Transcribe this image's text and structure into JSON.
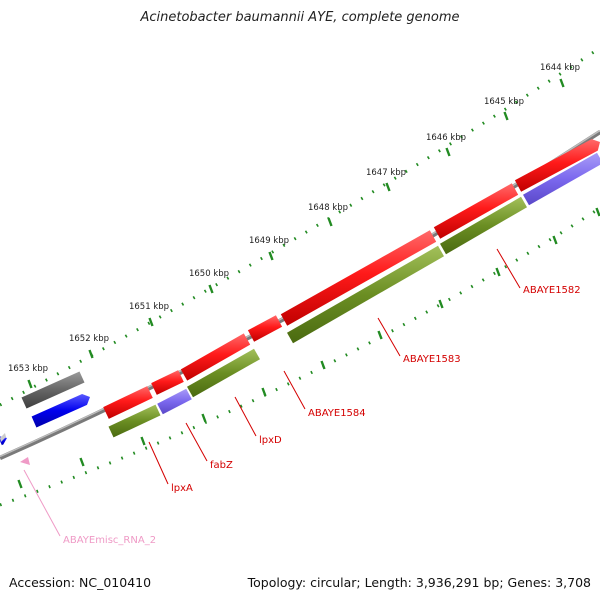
{
  "title": "Acinetobacter baumannii AYE, complete genome",
  "footer": {
    "accession": "Accession: NC_010410",
    "summary": "Topology: circular; Length: 3,936,291 bp; Genes: 3,708"
  },
  "ruler": {
    "labels": [
      "1644 kbp",
      "1645 kbp",
      "1646 kbp",
      "1647 kbp",
      "1648 kbp",
      "1649 kbp",
      "1650 kbp",
      "1651 kbp",
      "1652 kbp",
      "1653 kbp"
    ]
  },
  "genes": [
    {
      "name": "ABAYE1582",
      "color": "#d40000"
    },
    {
      "name": "ABAYE1583",
      "color": "#d40000"
    },
    {
      "name": "ABAYE1584",
      "color": "#d40000"
    },
    {
      "name": "lpxD",
      "color": "#d40000"
    },
    {
      "name": "fabZ",
      "color": "#d40000"
    },
    {
      "name": "lpxA",
      "color": "#d40000"
    },
    {
      "name": "ABAYEmisc_RNA_2",
      "color": "#ef9ac6"
    }
  ],
  "colors": {
    "cds": "#ee1111",
    "cog_green": "#6b8e23",
    "cog_purple": "#7b68ee",
    "cog_gray": "#666666",
    "blue_cds": "#0000ee",
    "backbone": "#8a8a8a",
    "ticks": "#228b22"
  }
}
